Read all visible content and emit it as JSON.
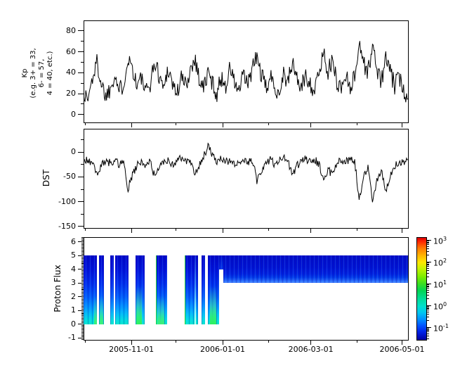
{
  "figure": {
    "background": "#ffffff",
    "line_color": "#000000"
  },
  "x_axis": {
    "tick_labels": [
      "2005-11-01",
      "2006-01-01",
      "2006-03-01",
      "2006-05-01"
    ],
    "major_fracs": [
      0.1475,
      0.4286,
      0.7005,
      0.9816
    ],
    "minor_fracs": [
      0.005,
      0.2857,
      0.5714,
      0.8433
    ],
    "range_start": "2005-09-30",
    "range_end": "2006-05-05"
  },
  "noise_seed": 1337,
  "noise_amp": {
    "kp": 9,
    "dst": 8
  },
  "chart_data": [
    {
      "id": "kp",
      "type": "line",
      "ylabel_lines": [
        "Kp",
        "(e.g. 3+ = 33,",
        "6- = 57,",
        "4 = 40, etc.)"
      ],
      "ylim": [
        -7.5,
        90
      ],
      "yticks": [
        0,
        20,
        40,
        60,
        80
      ],
      "yminor": [
        10,
        30,
        50,
        70
      ],
      "sample_interval_days": 3,
      "clamp": [
        2,
        86
      ],
      "values": [
        20,
        15,
        35,
        50,
        30,
        18,
        25,
        40,
        22,
        30,
        55,
        45,
        28,
        35,
        20,
        30,
        50,
        38,
        25,
        45,
        30,
        20,
        35,
        28,
        42,
        55,
        35,
        25,
        40,
        30,
        20,
        35,
        28,
        45,
        30,
        22,
        38,
        28,
        45,
        55,
        38,
        25,
        35,
        28,
        20,
        40,
        30,
        50,
        35,
        25,
        38,
        30,
        22,
        40,
        60,
        42,
        50,
        32,
        25,
        38,
        28,
        35,
        70,
        50,
        40,
        65,
        45,
        30,
        55,
        40,
        28,
        35,
        25,
        15
      ]
    },
    {
      "id": "dst",
      "type": "line",
      "ylabel": "DST",
      "ylim": [
        -153,
        47
      ],
      "yticks": [
        0,
        -50,
        -100,
        -150
      ],
      "yminor": [
        25,
        -25,
        -75,
        -125
      ],
      "sample_interval_days": 3,
      "clamp": [
        -148,
        42
      ],
      "values": [
        -15,
        -18,
        -25,
        -45,
        -28,
        -18,
        -22,
        -15,
        -25,
        -18,
        -75,
        -45,
        -28,
        -18,
        -25,
        -20,
        -50,
        -32,
        -20,
        -15,
        -25,
        -18,
        -12,
        -20,
        -15,
        -45,
        -28,
        -10,
        12,
        -8,
        -18,
        -12,
        -20,
        -15,
        -25,
        -18,
        -12,
        -20,
        -15,
        -60,
        -35,
        -22,
        -15,
        -25,
        -18,
        -12,
        -20,
        -45,
        -28,
        -18,
        -12,
        -22,
        -15,
        -25,
        -55,
        -35,
        -45,
        -25,
        -15,
        -20,
        -12,
        -18,
        -95,
        -50,
        -30,
        -100,
        -55,
        -35,
        -80,
        -45,
        -28,
        -18,
        -25,
        -15
      ]
    },
    {
      "id": "proton_flux",
      "type": "heatmap",
      "ylabel": "Proton Flux",
      "ylim": [
        -1.15,
        6.35
      ],
      "yticks": [
        -1,
        0,
        1,
        2,
        3,
        4,
        5,
        6
      ],
      "yminor_step": 0.1,
      "segments": [
        {
          "x0": 0.0,
          "x1": 0.0411,
          "y0": 0,
          "y1": 5,
          "style": "stripe",
          "accents": [
            {
              "type": "green-bottom",
              "x0": 0.0325,
              "x1": 0.0411
            }
          ]
        },
        {
          "x0": 0.0476,
          "x1": 0.0628,
          "y0": 0,
          "y1": 5,
          "style": "stripe",
          "accents": [
            {
              "type": "green-bottom",
              "x0": 0.05,
              "x1": 0.061
            }
          ]
        },
        {
          "x0": 0.0823,
          "x1": 0.0931,
          "y0": 0,
          "y1": 5,
          "style": "stripe",
          "accents": []
        },
        {
          "x0": 0.0974,
          "x1": 0.1385,
          "y0": 0,
          "y1": 5,
          "style": "stripe",
          "accents": []
        },
        {
          "x0": 0.1602,
          "x1": 0.1883,
          "y0": 0,
          "y1": 5,
          "style": "stripe",
          "accents": [
            {
              "type": "green-bottom-strong",
              "x0": 0.162,
              "x1": 0.18
            }
          ]
        },
        {
          "x0": 0.2229,
          "x1": 0.2576,
          "y0": 0,
          "y1": 5,
          "style": "stripe",
          "accents": [
            {
              "type": "green-line",
              "x0": 0.2229,
              "x1": 0.2262
            },
            {
              "type": "green-bottom",
              "x0": 0.228,
              "x1": 0.248
            }
          ]
        },
        {
          "x0": 0.3117,
          "x1": 0.3528,
          "y0": 0,
          "y1": 5,
          "style": "stripe",
          "accents": [
            {
              "type": "green-line",
              "x0": 0.3117,
              "x1": 0.3149
            },
            {
              "type": "cyan-streak",
              "x0": 0.342,
              "x1": 0.347
            }
          ]
        },
        {
          "x0": 0.3636,
          "x1": 0.3745,
          "y0": 0,
          "y1": 5,
          "style": "stripe",
          "accents": []
        },
        {
          "x0": 0.3831,
          "x1": 0.4177,
          "y0": 0,
          "y1": 5,
          "style": "stripe",
          "accents": [
            {
              "type": "green-bottom-strong",
              "x0": 0.39,
              "x1": 0.409
            }
          ]
        },
        {
          "x0": 0.4177,
          "x1": 0.4307,
          "y0": 4,
          "y1": 5,
          "style": "stripe-dark",
          "accents": []
        },
        {
          "x0": 0.4307,
          "x1": 1.0,
          "y0": 3,
          "y1": 5,
          "style": "band",
          "accents": []
        }
      ],
      "colorbar": {
        "colormap": "jet",
        "label_base": "10",
        "exponents": [
          3,
          2,
          1,
          0,
          -1
        ]
      }
    }
  ]
}
